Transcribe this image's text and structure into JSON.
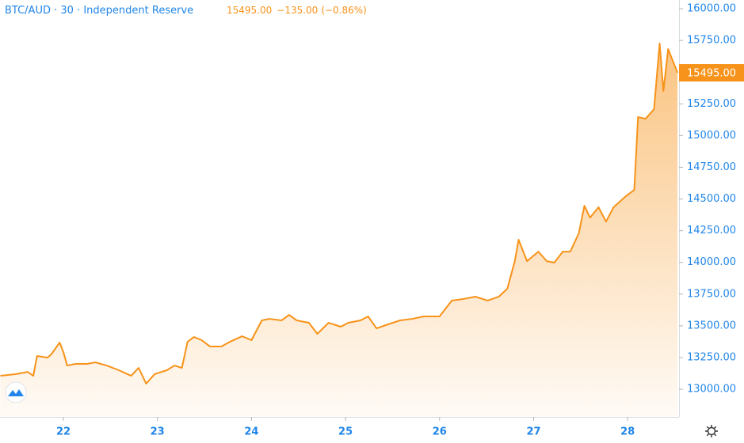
{
  "chart_data": {
    "type": "area",
    "symbol": "BTC/AUD",
    "interval": "30",
    "exchange": "Independent Reserve",
    "last_price": "15495.00",
    "change": "−135.00",
    "change_pct": "(−0.86%)",
    "color": "#f7931a",
    "x": [
      21.33,
      21.49,
      21.62,
      21.68,
      21.72,
      21.83,
      21.87,
      21.96,
      22.0,
      22.04,
      22.13,
      22.25,
      22.34,
      22.46,
      22.59,
      22.72,
      22.8,
      22.88,
      22.97,
      23.1,
      23.18,
      23.26,
      23.32,
      23.39,
      23.47,
      23.56,
      23.68,
      23.77,
      23.9,
      24.0,
      24.11,
      24.19,
      24.32,
      24.4,
      24.48,
      24.61,
      24.7,
      24.82,
      24.95,
      25.03,
      25.16,
      25.24,
      25.33,
      25.45,
      25.58,
      25.71,
      25.83,
      26.0,
      26.13,
      26.25,
      26.38,
      26.51,
      26.63,
      26.72,
      26.8,
      26.84,
      26.93,
      27.05,
      27.14,
      27.22,
      27.31,
      27.39,
      27.48,
      27.54,
      27.6,
      27.69,
      27.77,
      27.85,
      27.98,
      28.07,
      28.11,
      28.19,
      28.28,
      28.3,
      28.34,
      28.38,
      28.43,
      28.49,
      28.53
    ],
    "values": [
      13106,
      13119,
      13137,
      13106,
      13262,
      13249,
      13274,
      13368,
      13293,
      13187,
      13200,
      13200,
      13212,
      13187,
      13150,
      13106,
      13168,
      13044,
      13119,
      13150,
      13187,
      13168,
      13374,
      13412,
      13387,
      13337,
      13337,
      13374,
      13418,
      13387,
      13543,
      13555,
      13543,
      13586,
      13543,
      13524,
      13437,
      13524,
      13493,
      13524,
      13543,
      13574,
      13480,
      13511,
      13543,
      13555,
      13574,
      13574,
      13699,
      13711,
      13730,
      13699,
      13730,
      13792,
      14010,
      14179,
      14010,
      14085,
      14010,
      13998,
      14085,
      14085,
      14229,
      14447,
      14353,
      14435,
      14322,
      14435,
      14522,
      14572,
      15146,
      15133,
      15208,
      15383,
      15726,
      15351,
      15682,
      15570,
      15495
    ],
    "xlim": [
      21.326,
      28.546
    ],
    "xticks": [
      22,
      23,
      24,
      25,
      26,
      27,
      28
    ],
    "ylim": [
      12782,
      16069
    ],
    "yticks": [
      {
        "value": 13000,
        "label": "13000.00"
      },
      {
        "value": 13250,
        "label": "13250.00"
      },
      {
        "value": 13500,
        "label": "13500.00"
      },
      {
        "value": 13750,
        "label": "13750.00"
      },
      {
        "value": 14000,
        "label": "14000.00"
      },
      {
        "value": 14250,
        "label": "14250.00"
      },
      {
        "value": 14500,
        "label": "14500.00"
      },
      {
        "value": 14750,
        "label": "14750.00"
      },
      {
        "value": 15000,
        "label": "15000.00"
      },
      {
        "value": 15250,
        "label": "15250.00"
      },
      {
        "value": 15500,
        "label": "15500.00"
      },
      {
        "value": 15750,
        "label": "15750.00"
      },
      {
        "value": 16000,
        "label": "16000.00"
      }
    ],
    "grid": false
  }
}
